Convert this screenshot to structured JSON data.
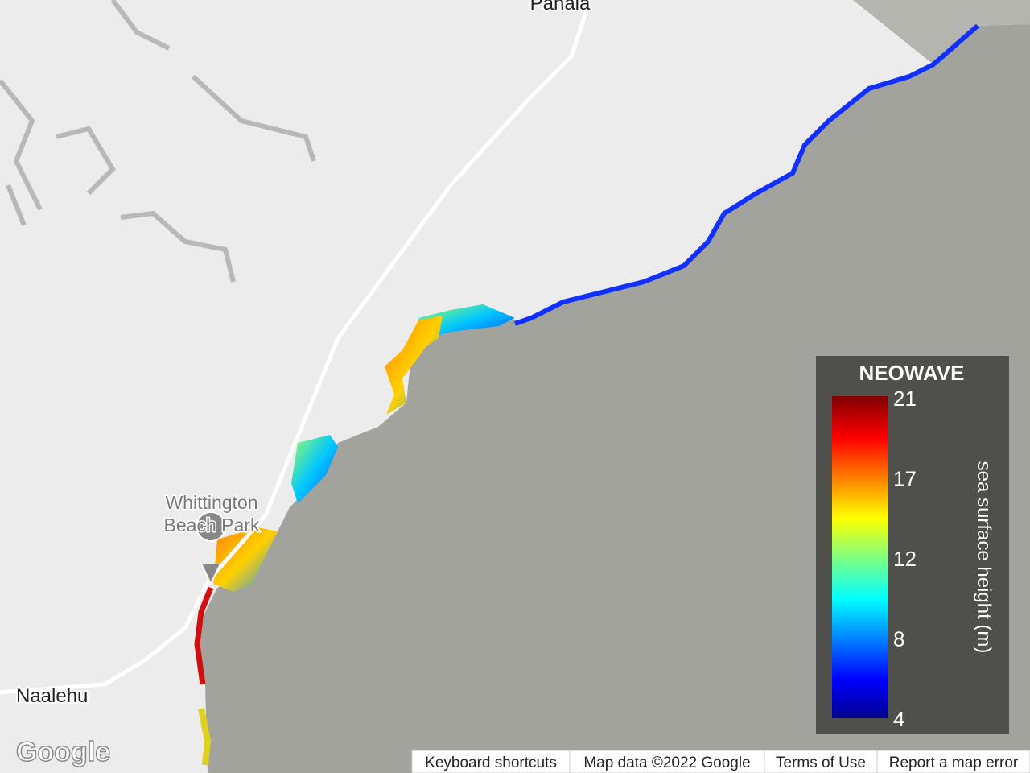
{
  "places": [
    {
      "label": "Pahala"
    },
    {
      "label": "Whittington"
    },
    {
      "label": "Beach Park"
    },
    {
      "label": "Naalehu"
    }
  ],
  "logo": "Google",
  "footer": [
    "Keyboard shortcuts",
    "Map data ©2022 Google",
    "Terms of Use",
    "Report a map error"
  ],
  "legend": {
    "title": "NEOWAVE",
    "ticks": [
      21,
      17,
      12,
      8,
      4
    ],
    "axis_label": "sea surface height (m)"
  }
}
